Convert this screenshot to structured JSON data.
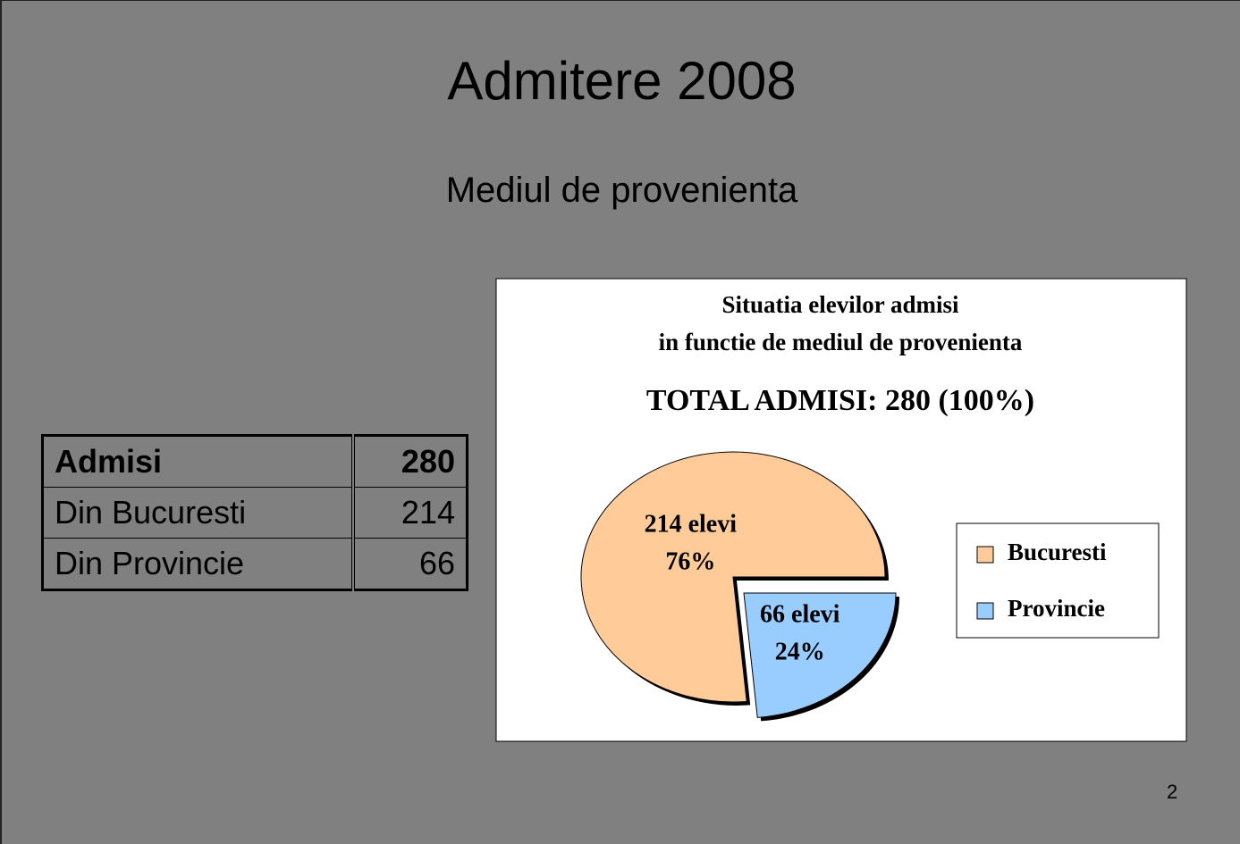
{
  "slide": {
    "title": "Admitere 2008",
    "subtitle": "Mediul de provenienta",
    "page_number": "2"
  },
  "table": {
    "header": [
      "Admisi",
      280
    ],
    "rows": [
      [
        "Din Bucuresti",
        214
      ],
      [
        "Din Provincie",
        66
      ]
    ]
  },
  "chart_data": {
    "type": "pie",
    "title": [
      "Situatia elevilor admisi",
      "in functie de mediul de provenienta"
    ],
    "subtitle": "TOTAL ADMISI: 280 (100%)",
    "categories": [
      "Bucuresti",
      "Provincie"
    ],
    "values": [
      214,
      66
    ],
    "value_labels": [
      "214 elevi",
      "66 elevi"
    ],
    "percentages": [
      76,
      24
    ],
    "percentage_labels": [
      "76%",
      "24%"
    ],
    "colors": [
      "#ffcc99",
      "#99ccff"
    ],
    "legend": "right"
  }
}
